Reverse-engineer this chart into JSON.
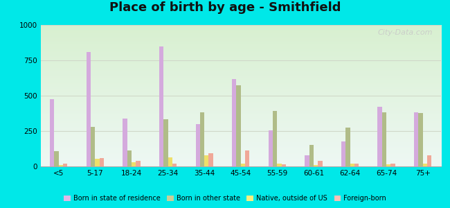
{
  "title": "Place of birth by age - Smithfield",
  "categories": [
    "<5",
    "5-17",
    "18-24",
    "25-34",
    "35-44",
    "45-54",
    "55-59",
    "60-61",
    "62-64",
    "65-74",
    "75+"
  ],
  "series": {
    "Born in state of residence": [
      475,
      810,
      340,
      850,
      300,
      620,
      255,
      80,
      175,
      420,
      380
    ],
    "Born in other state": [
      110,
      280,
      115,
      335,
      380,
      575,
      390,
      150,
      275,
      380,
      375
    ],
    "Native, outside of US": [
      10,
      55,
      30,
      65,
      80,
      20,
      20,
      10,
      20,
      15,
      20
    ],
    "Foreign-born": [
      20,
      60,
      40,
      20,
      95,
      115,
      15,
      40,
      20,
      20,
      80
    ]
  },
  "colors": {
    "Born in state of residence": "#d4aadd",
    "Born in other state": "#b0bc88",
    "Native, outside of US": "#eedf6a",
    "Foreign-born": "#f0a898"
  },
  "legend_colors": {
    "Born in state of residence": "#e0b8e8",
    "Born in other state": "#c8d098",
    "Native, outside of US": "#f5f080",
    "Foreign-born": "#f8c0b8"
  },
  "ylim": [
    0,
    1000
  ],
  "yticks": [
    0,
    250,
    500,
    750,
    1000
  ],
  "bg_top": "#e8f8f0",
  "bg_bottom": "#c8e8c0",
  "outer_background": "#00e8e8",
  "grid_color": "#d0d8c8",
  "title_fontsize": 13,
  "bar_width": 0.12,
  "tick_fontsize": 7.5
}
